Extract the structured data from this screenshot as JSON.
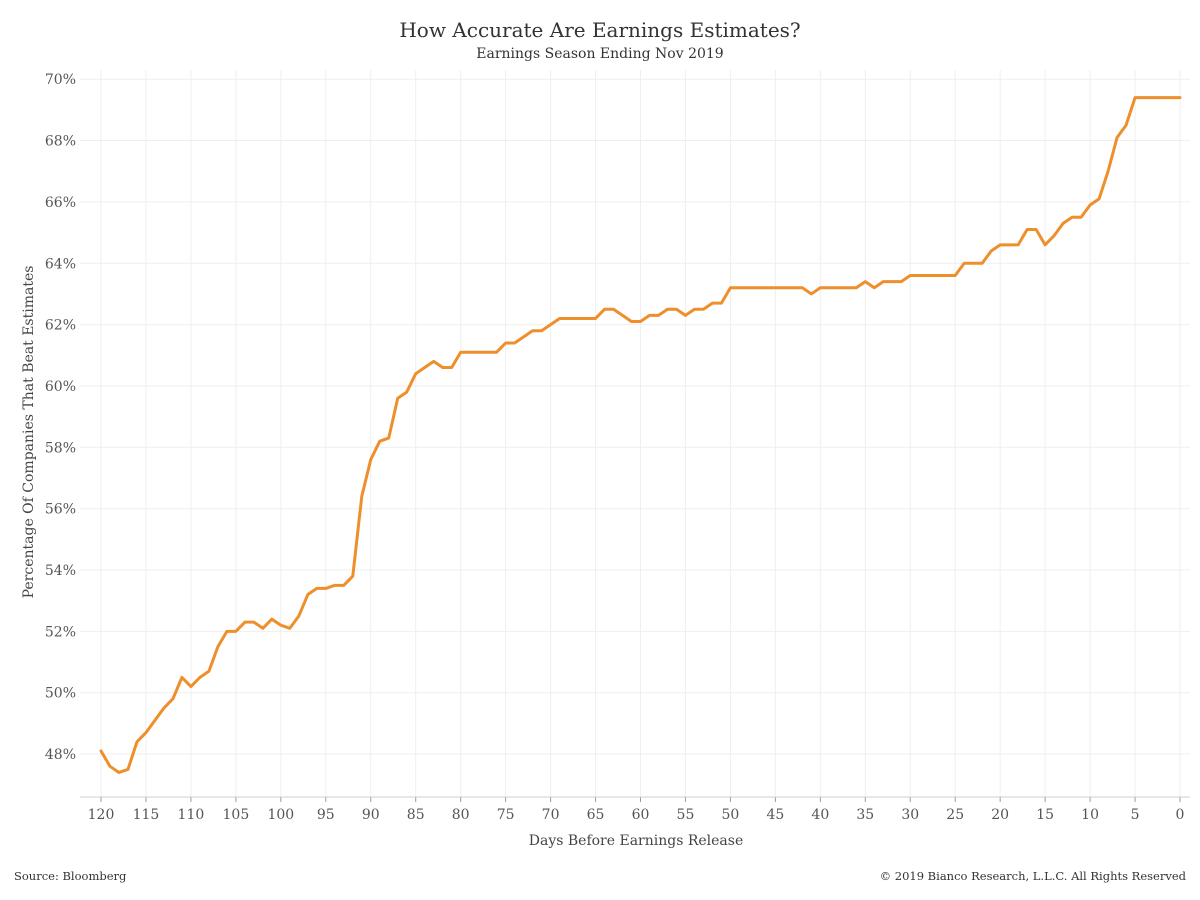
{
  "colors": {
    "series": "#ee8f2c"
  },
  "chart_data": {
    "type": "line",
    "title": "How Accurate Are Earnings Estimates?",
    "subtitle": "Earnings Season Ending Nov 2019",
    "xlabel": "Days Before Earnings Release",
    "ylabel": "Percentage Of Companies That Beat Estimates",
    "xlim": [
      120,
      0
    ],
    "ylim": [
      46.6,
      70.3
    ],
    "x_ticks": [
      120,
      115,
      110,
      105,
      100,
      95,
      90,
      85,
      80,
      75,
      70,
      65,
      60,
      55,
      50,
      45,
      40,
      35,
      30,
      25,
      20,
      15,
      10,
      5,
      0
    ],
    "y_ticks": [
      48,
      50,
      52,
      54,
      56,
      58,
      60,
      62,
      64,
      66,
      68,
      70
    ],
    "y_tick_labels": [
      "48%",
      "50%",
      "52%",
      "54%",
      "56%",
      "58%",
      "60%",
      "62%",
      "64%",
      "66%",
      "68%",
      "70%"
    ],
    "grid": true,
    "series": [
      {
        "name": "Percentage Of Companies That Beat Estimates",
        "x": [
          120,
          119,
          118,
          117,
          116,
          115,
          114,
          113,
          112,
          111,
          110,
          109,
          108,
          107,
          106,
          105,
          104,
          103,
          102,
          101,
          100,
          99,
          98,
          97,
          96,
          95,
          94,
          93,
          92,
          91,
          90,
          89,
          88,
          87,
          86,
          85,
          84,
          83,
          82,
          81,
          80,
          79,
          78,
          77,
          76,
          75,
          74,
          73,
          72,
          71,
          70,
          69,
          68,
          67,
          66,
          65,
          64,
          63,
          62,
          61,
          60,
          59,
          58,
          57,
          56,
          55,
          54,
          53,
          52,
          51,
          50,
          49,
          48,
          47,
          46,
          45,
          44,
          43,
          42,
          41,
          40,
          39,
          38,
          37,
          36,
          35,
          34,
          33,
          32,
          31,
          30,
          29,
          28,
          27,
          26,
          25,
          24,
          23,
          22,
          21,
          20,
          19,
          18,
          17,
          16,
          15,
          14,
          13,
          12,
          11,
          10,
          9,
          8,
          7,
          6,
          5,
          4,
          3,
          2,
          1,
          0
        ],
        "values": [
          48.1,
          47.6,
          47.4,
          47.5,
          48.4,
          48.7,
          49.1,
          49.5,
          49.8,
          50.5,
          50.2,
          50.5,
          50.7,
          51.5,
          52.0,
          52.0,
          52.3,
          52.3,
          52.1,
          52.4,
          52.2,
          52.1,
          52.5,
          53.2,
          53.4,
          53.4,
          53.5,
          53.5,
          53.8,
          56.4,
          57.6,
          58.2,
          58.3,
          59.6,
          59.8,
          60.4,
          60.6,
          60.8,
          60.6,
          60.6,
          61.1,
          61.1,
          61.1,
          61.1,
          61.1,
          61.4,
          61.4,
          61.6,
          61.8,
          61.8,
          62.0,
          62.2,
          62.2,
          62.2,
          62.2,
          62.2,
          62.5,
          62.5,
          62.3,
          62.1,
          62.1,
          62.3,
          62.3,
          62.5,
          62.5,
          62.3,
          62.5,
          62.5,
          62.7,
          62.7,
          63.2,
          63.2,
          63.2,
          63.2,
          63.2,
          63.2,
          63.2,
          63.2,
          63.2,
          63.0,
          63.2,
          63.2,
          63.2,
          63.2,
          63.2,
          63.4,
          63.2,
          63.4,
          63.4,
          63.4,
          63.6,
          63.6,
          63.6,
          63.6,
          63.6,
          63.6,
          64.0,
          64.0,
          64.0,
          64.4,
          64.6,
          64.6,
          64.6,
          65.1,
          65.1,
          64.6,
          64.9,
          65.3,
          65.5,
          65.5,
          65.9,
          66.1,
          67.0,
          68.1,
          68.5,
          69.4,
          69.4,
          69.4,
          69.4,
          69.4,
          69.4
        ]
      }
    ]
  },
  "footer": {
    "source": "Source: Bloomberg",
    "copyright": "© 2019 Bianco Research, L.L.C. All Rights Reserved"
  }
}
